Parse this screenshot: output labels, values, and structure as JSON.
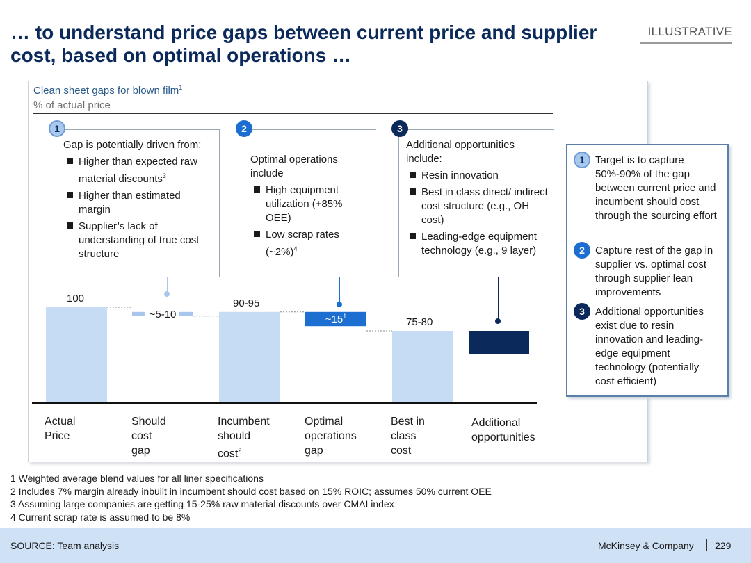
{
  "title": "… to understand price gaps between current price and supplier cost, based on optimal operations …",
  "tag": "ILLUSTRATIVE",
  "chart": {
    "title": "Clean sheet gaps for blown film",
    "title_sup": "1",
    "subtitle": "% of actual price"
  },
  "boxes": [
    {
      "num": "1",
      "head": "Gap is potentially driven from:",
      "items": [
        {
          "text": "Higher than expected raw material discounts",
          "sup": "3"
        },
        {
          "text": "Higher than estimated margin",
          "sup": ""
        },
        {
          "text": "Supplier’s lack of understanding of true cost structure",
          "sup": ""
        }
      ]
    },
    {
      "num": "2",
      "head": "Optimal operations include",
      "items": [
        {
          "text": "High equipment utilization (+85% OEE)",
          "sup": ""
        },
        {
          "text": "Low scrap rates (~2%)",
          "sup": "4"
        }
      ]
    },
    {
      "num": "3",
      "head": "Additional opportunities include:",
      "items": [
        {
          "text": "Resin innovation",
          "sup": ""
        },
        {
          "text": "Best in class direct/ indirect cost structure (e.g., OH cost)",
          "sup": ""
        },
        {
          "text": "Leading-edge equipment technology (e.g., 9 layer)",
          "sup": ""
        }
      ]
    }
  ],
  "chart_data": {
    "type": "bar",
    "subtype": "waterfall",
    "title": "Clean sheet gaps for blown film",
    "ylabel": "% of actual price",
    "ylim": [
      0,
      100
    ],
    "categories": [
      "Actual Price",
      "Should cost gap",
      "Incumbent should cost",
      "Optimal operations gap",
      "Best in class cost",
      "Additional opportunities"
    ],
    "axis_labels": [
      "Actual\nPrice",
      "Should\ncost\ngap",
      "Incumbent\nshould\ncost",
      "Optimal\noperations\ngap",
      "Best in\nclass\ncost",
      "Additional\nopportunities"
    ],
    "axis_sups": [
      "",
      "",
      "2",
      "",
      "",
      ""
    ],
    "bars": [
      {
        "kind": "total",
        "start": 0,
        "end": 100,
        "label": "100",
        "color": "#c6dcf5"
      },
      {
        "kind": "gap",
        "start": 95,
        "end": 90,
        "label": "~5-10",
        "color": "#a8c6ec"
      },
      {
        "kind": "total",
        "start": 0,
        "end": 95,
        "label": "90-95",
        "color": "#c6dcf5"
      },
      {
        "kind": "gap",
        "start": 95,
        "end": 80,
        "label": "~15",
        "label_sup": "1",
        "color": "#1c6fd1"
      },
      {
        "kind": "total",
        "start": 0,
        "end": 75,
        "label": "75-80",
        "color": "#c6dcf5"
      },
      {
        "kind": "gap",
        "start": 75,
        "end": 50,
        "label": "",
        "color": "#0b2a5b"
      }
    ]
  },
  "side": {
    "items": [
      {
        "num": "1",
        "text": "Target is to capture 50%-90% of the gap between current price and incumbent should cost through the sourcing effort"
      },
      {
        "num": "2",
        "text": "Capture rest of the gap in supplier vs. optimal cost through supplier lean improvements"
      },
      {
        "num": "3",
        "text": "Additional opportunities exist due to resin innovation and leading-edge equipment technology (potentially cost efficient)"
      }
    ]
  },
  "footnotes": [
    "1 Weighted average blend values for all liner specifications",
    "2 Includes 7% margin already inbuilt in incumbent should cost based on 15% ROIC; assumes 50% current OEE",
    "3 Assuming large companies are getting 15-25% raw material discounts over CMAI index",
    "4 Current scrap rate is assumed to be 8%"
  ],
  "footer": {
    "source": "SOURCE: Team analysis",
    "company": "McKinsey & Company",
    "page": "229"
  },
  "colors": {
    "title": "#0b2a5b",
    "light_bar": "#c6dcf5",
    "mid_blue": "#1c6fd1",
    "dark_navy": "#0b2a5b",
    "footer_bg": "#cfe1f5"
  }
}
